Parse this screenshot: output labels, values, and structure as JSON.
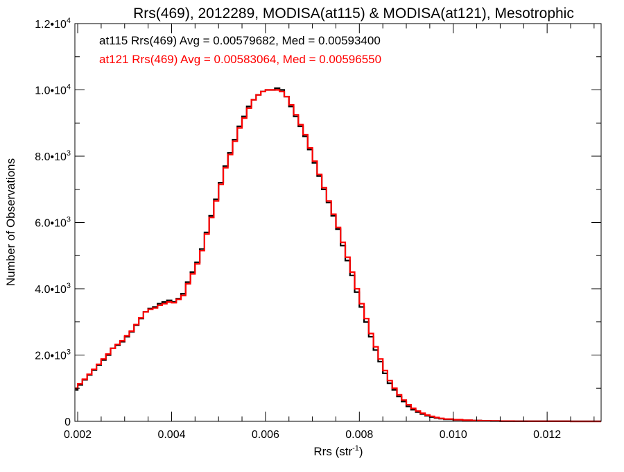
{
  "chart_data": {
    "type": "line",
    "title": "Rrs(469), 2012289, MODISA(at115) & MODISA(at121), Mesotrophic",
    "xlabel": "Rrs (str",
    "xlabel_sup": "-1",
    "xlabel_end": ")",
    "ylabel": "Number of Observations",
    "xlim": [
      0.00194,
      0.01315
    ],
    "ylim": [
      0,
      12000
    ],
    "x_ticks": [
      {
        "value": 0.002,
        "label": "0.002"
      },
      {
        "value": 0.004,
        "label": "0.004"
      },
      {
        "value": 0.006,
        "label": "0.006"
      },
      {
        "value": 0.008,
        "label": "0.008"
      },
      {
        "value": 0.01,
        "label": "0.010"
      },
      {
        "value": 0.012,
        "label": "0.012"
      }
    ],
    "y_ticks": [
      {
        "value": 0,
        "mant": "0",
        "exp": ""
      },
      {
        "value": 2000,
        "mant": "2.0•10",
        "exp": "3"
      },
      {
        "value": 4000,
        "mant": "4.0•10",
        "exp": "3"
      },
      {
        "value": 6000,
        "mant": "6.0•10",
        "exp": "3"
      },
      {
        "value": 8000,
        "mant": "8.0•10",
        "exp": "3"
      },
      {
        "value": 10000,
        "mant": "1.0•10",
        "exp": "4"
      },
      {
        "value": 12000,
        "mant": "1.2•10",
        "exp": "4"
      }
    ],
    "legend_position": "top-left",
    "grid": false,
    "series": [
      {
        "name": "at115 Rrs(469) Avg = 0.00579682, Med = 0.00593400",
        "color": "#000000",
        "points": [
          [
            0.00195,
            950
          ],
          [
            0.002,
            1100
          ],
          [
            0.0021,
            1250
          ],
          [
            0.0022,
            1400
          ],
          [
            0.0023,
            1550
          ],
          [
            0.0024,
            1700
          ],
          [
            0.0025,
            1850
          ],
          [
            0.0026,
            2000
          ],
          [
            0.0027,
            2200
          ],
          [
            0.0028,
            2300
          ],
          [
            0.0029,
            2400
          ],
          [
            0.003,
            2550
          ],
          [
            0.0031,
            2700
          ],
          [
            0.0032,
            2900
          ],
          [
            0.0033,
            3100
          ],
          [
            0.0034,
            3300
          ],
          [
            0.0035,
            3400
          ],
          [
            0.0036,
            3450
          ],
          [
            0.0037,
            3550
          ],
          [
            0.0038,
            3600
          ],
          [
            0.0039,
            3650
          ],
          [
            0.004,
            3600
          ],
          [
            0.0041,
            3700
          ],
          [
            0.0042,
            3850
          ],
          [
            0.0043,
            4200
          ],
          [
            0.0044,
            4500
          ],
          [
            0.0045,
            4800
          ],
          [
            0.0046,
            5200
          ],
          [
            0.0047,
            5700
          ],
          [
            0.0048,
            6200
          ],
          [
            0.0049,
            6700
          ],
          [
            0.005,
            7200
          ],
          [
            0.0051,
            7700
          ],
          [
            0.0052,
            8100
          ],
          [
            0.0053,
            8500
          ],
          [
            0.0054,
            8900
          ],
          [
            0.0055,
            9200
          ],
          [
            0.0056,
            9500
          ],
          [
            0.0057,
            9700
          ],
          [
            0.0058,
            9850
          ],
          [
            0.0059,
            9950
          ],
          [
            0.006,
            10000
          ],
          [
            0.0061,
            10000
          ],
          [
            0.0062,
            10050
          ],
          [
            0.0063,
            10000
          ],
          [
            0.0064,
            9800
          ],
          [
            0.0065,
            9500
          ],
          [
            0.0066,
            9200
          ],
          [
            0.0067,
            8900
          ],
          [
            0.0068,
            8600
          ],
          [
            0.0069,
            8200
          ],
          [
            0.007,
            7800
          ],
          [
            0.0071,
            7400
          ],
          [
            0.0072,
            7000
          ],
          [
            0.0073,
            6600
          ],
          [
            0.0074,
            6200
          ],
          [
            0.0075,
            5800
          ],
          [
            0.0076,
            5300
          ],
          [
            0.0077,
            4850
          ],
          [
            0.0078,
            4400
          ],
          [
            0.0079,
            3900
          ],
          [
            0.008,
            3450
          ],
          [
            0.0081,
            3000
          ],
          [
            0.0082,
            2550
          ],
          [
            0.0083,
            2150
          ],
          [
            0.0084,
            1800
          ],
          [
            0.0085,
            1450
          ],
          [
            0.0086,
            1150
          ],
          [
            0.0087,
            950
          ],
          [
            0.0088,
            750
          ],
          [
            0.0089,
            600
          ],
          [
            0.009,
            450
          ],
          [
            0.0091,
            350
          ],
          [
            0.0092,
            280
          ],
          [
            0.0093,
            220
          ],
          [
            0.0094,
            170
          ],
          [
            0.0095,
            130
          ],
          [
            0.0096,
            100
          ],
          [
            0.0097,
            80
          ],
          [
            0.0098,
            60
          ],
          [
            0.01,
            45
          ],
          [
            0.0102,
            32
          ],
          [
            0.0104,
            22
          ],
          [
            0.0106,
            15
          ],
          [
            0.0108,
            10
          ],
          [
            0.011,
            7
          ],
          [
            0.0113,
            5
          ],
          [
            0.0116,
            3
          ],
          [
            0.012,
            2
          ],
          [
            0.0125,
            1
          ],
          [
            0.0131,
            1
          ]
        ]
      },
      {
        "name": "at121 Rrs(469) Avg = 0.00583064, Med = 0.00596550",
        "color": "#ff0000",
        "points": [
          [
            0.00195,
            1000
          ],
          [
            0.002,
            1130
          ],
          [
            0.0021,
            1270
          ],
          [
            0.0022,
            1420
          ],
          [
            0.0023,
            1570
          ],
          [
            0.0024,
            1720
          ],
          [
            0.0025,
            1880
          ],
          [
            0.0026,
            2030
          ],
          [
            0.0027,
            2200
          ],
          [
            0.0028,
            2320
          ],
          [
            0.0029,
            2430
          ],
          [
            0.003,
            2580
          ],
          [
            0.0031,
            2720
          ],
          [
            0.0032,
            2920
          ],
          [
            0.0033,
            3120
          ],
          [
            0.0034,
            3300
          ],
          [
            0.0035,
            3380
          ],
          [
            0.0036,
            3420
          ],
          [
            0.0037,
            3500
          ],
          [
            0.0038,
            3550
          ],
          [
            0.0039,
            3600
          ],
          [
            0.004,
            3580
          ],
          [
            0.0041,
            3680
          ],
          [
            0.0042,
            3800
          ],
          [
            0.0043,
            4150
          ],
          [
            0.0044,
            4450
          ],
          [
            0.0045,
            4750
          ],
          [
            0.0046,
            5150
          ],
          [
            0.0047,
            5650
          ],
          [
            0.0048,
            6150
          ],
          [
            0.0049,
            6650
          ],
          [
            0.005,
            7150
          ],
          [
            0.0051,
            7650
          ],
          [
            0.0052,
            8050
          ],
          [
            0.0053,
            8450
          ],
          [
            0.0054,
            8850
          ],
          [
            0.0055,
            9150
          ],
          [
            0.0056,
            9450
          ],
          [
            0.0057,
            9700
          ],
          [
            0.0058,
            9850
          ],
          [
            0.0059,
            9950
          ],
          [
            0.006,
            10000
          ],
          [
            0.0061,
            10000
          ],
          [
            0.0062,
            10000
          ],
          [
            0.0063,
            9950
          ],
          [
            0.0064,
            9800
          ],
          [
            0.0065,
            9550
          ],
          [
            0.0066,
            9250
          ],
          [
            0.0067,
            8950
          ],
          [
            0.0068,
            8650
          ],
          [
            0.0069,
            8250
          ],
          [
            0.007,
            7850
          ],
          [
            0.0071,
            7450
          ],
          [
            0.0072,
            7050
          ],
          [
            0.0073,
            6650
          ],
          [
            0.0074,
            6250
          ],
          [
            0.0075,
            5850
          ],
          [
            0.0076,
            5400
          ],
          [
            0.0077,
            4950
          ],
          [
            0.0078,
            4500
          ],
          [
            0.0079,
            4000
          ],
          [
            0.008,
            3550
          ],
          [
            0.0081,
            3100
          ],
          [
            0.0082,
            2650
          ],
          [
            0.0083,
            2250
          ],
          [
            0.0084,
            1880
          ],
          [
            0.0085,
            1530
          ],
          [
            0.0086,
            1230
          ],
          [
            0.0087,
            1000
          ],
          [
            0.0088,
            800
          ],
          [
            0.0089,
            640
          ],
          [
            0.009,
            500
          ],
          [
            0.0091,
            390
          ],
          [
            0.0092,
            310
          ],
          [
            0.0093,
            245
          ],
          [
            0.0094,
            190
          ],
          [
            0.0095,
            150
          ],
          [
            0.0096,
            115
          ],
          [
            0.0097,
            90
          ],
          [
            0.0098,
            70
          ],
          [
            0.01,
            50
          ],
          [
            0.0102,
            36
          ],
          [
            0.0104,
            25
          ],
          [
            0.0106,
            17
          ],
          [
            0.0108,
            12
          ],
          [
            0.011,
            8
          ],
          [
            0.0113,
            5
          ],
          [
            0.0116,
            3
          ],
          [
            0.012,
            2
          ],
          [
            0.0125,
            1
          ],
          [
            0.0131,
            1
          ]
        ]
      }
    ]
  }
}
